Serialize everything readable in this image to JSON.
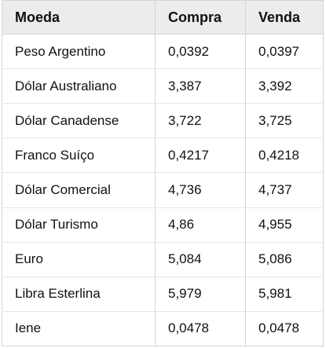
{
  "table": {
    "headers": [
      "Moeda",
      "Compra",
      "Venda"
    ],
    "rows": [
      [
        "Peso Argentino",
        "0,0392",
        "0,0397"
      ],
      [
        "Dólar Australiano",
        "3,387",
        "3,392"
      ],
      [
        "Dólar Canadense",
        "3,722",
        "3,725"
      ],
      [
        "Franco Suíço",
        "0,4217",
        "0,4218"
      ],
      [
        "Dólar Comercial",
        "4,736",
        "4,737"
      ],
      [
        "Dólar Turismo",
        "4,86",
        "4,955"
      ],
      [
        "Euro",
        "5,084",
        "5,086"
      ],
      [
        "Libra Esterlina",
        "5,979",
        "5,981"
      ],
      [
        "Iene",
        "0,0478",
        "0,0478"
      ]
    ]
  }
}
